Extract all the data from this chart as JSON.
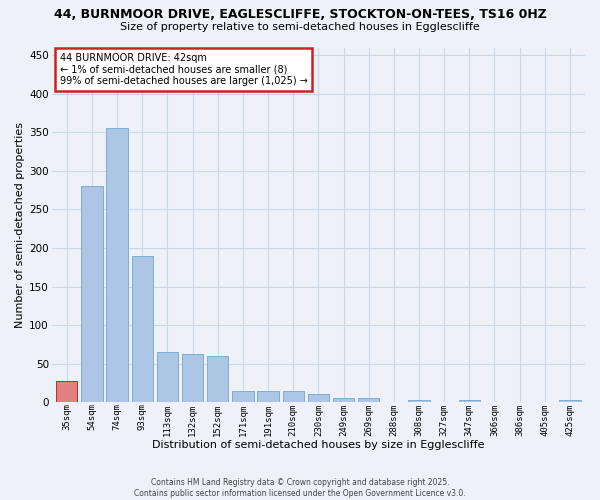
{
  "title1": "44, BURNMOOR DRIVE, EAGLESCLIFFE, STOCKTON-ON-TEES, TS16 0HZ",
  "title2": "Size of property relative to semi-detached houses in Egglescliffe",
  "xlabel": "Distribution of semi-detached houses by size in Egglescliffe",
  "ylabel": "Number of semi-detached properties",
  "footer1": "Contains HM Land Registry data © Crown copyright and database right 2025.",
  "footer2": "Contains public sector information licensed under the Open Government Licence v3.0.",
  "annotation_title": "44 BURNMOOR DRIVE: 42sqm",
  "annotation_line1": "← 1% of semi-detached houses are smaller (8)",
  "annotation_line2": "99% of semi-detached houses are larger (1,025) →",
  "bar_labels": [
    "35sqm",
    "54sqm",
    "74sqm",
    "93sqm",
    "113sqm",
    "132sqm",
    "152sqm",
    "171sqm",
    "191sqm",
    "210sqm",
    "230sqm",
    "249sqm",
    "269sqm",
    "288sqm",
    "308sqm",
    "327sqm",
    "347sqm",
    "366sqm",
    "386sqm",
    "405sqm",
    "425sqm"
  ],
  "bar_values": [
    28,
    280,
    355,
    190,
    65,
    63,
    60,
    15,
    15,
    15,
    10,
    5,
    5,
    0,
    3,
    0,
    3,
    0,
    0,
    0,
    3
  ],
  "bar_color": "#adc6e5",
  "bar_edge_color": "#7bafd4",
  "highlight_bar_index": 0,
  "highlight_color": "#e08080",
  "highlight_edge_color": "#cc2222",
  "annotation_box_color": "#cc2222",
  "ylim": [
    0,
    460
  ],
  "yticks": [
    0,
    50,
    100,
    150,
    200,
    250,
    300,
    350,
    400,
    450
  ],
  "grid_color": "#c8d8ea",
  "bg_color": "#eef2f8"
}
